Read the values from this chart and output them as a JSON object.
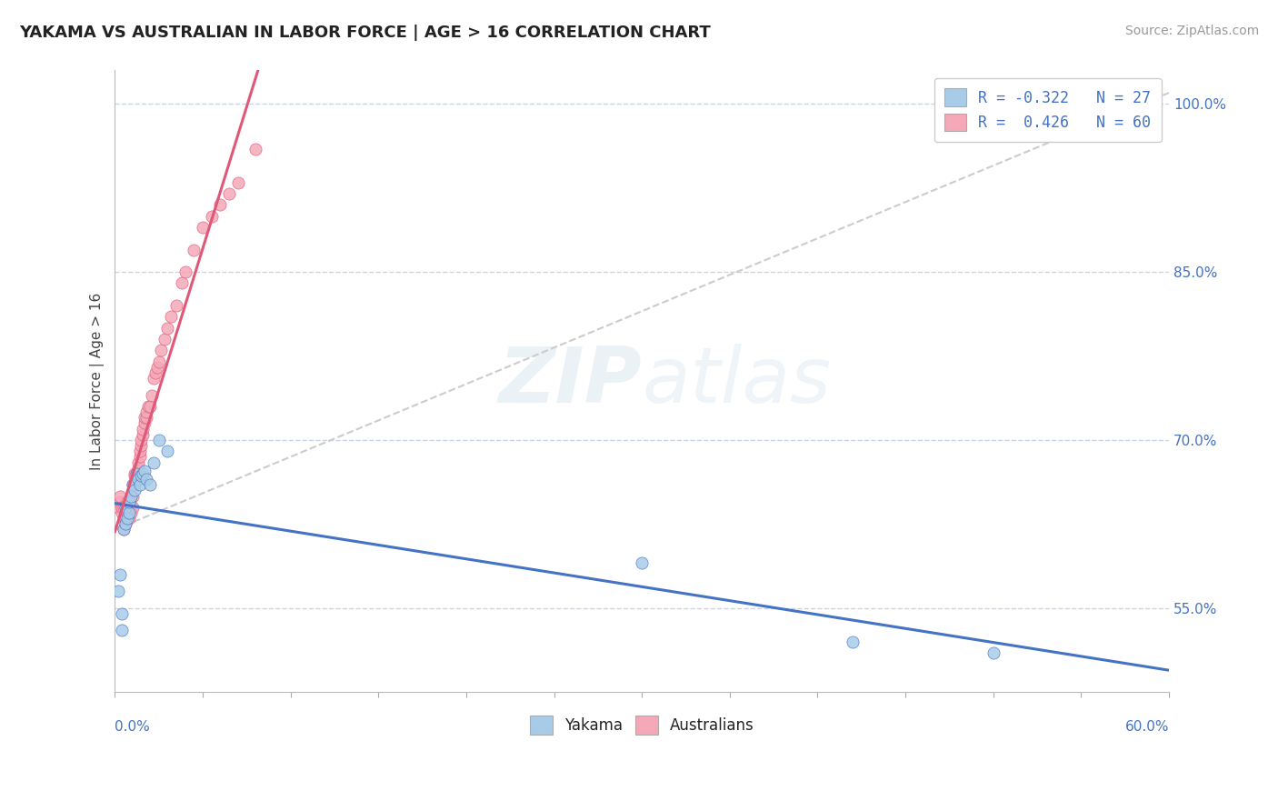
{
  "title": "YAKAMA VS AUSTRALIAN IN LABOR FORCE | AGE > 16 CORRELATION CHART",
  "source": "Source: ZipAtlas.com",
  "ylabel": "In Labor Force | Age > 16",
  "xlim": [
    0.0,
    0.6
  ],
  "ylim": [
    0.475,
    1.03
  ],
  "yticks": [
    0.55,
    0.7,
    0.85,
    1.0
  ],
  "watermark": "ZIPatlas",
  "yakama_color": "#a8cce8",
  "australian_color": "#f4a8b8",
  "trend_yakama_color": "#4472c4",
  "trend_australian_color": "#e05878",
  "background_color": "#ffffff",
  "grid_color": "#c8d4e8",
  "yakama_x": [
    0.002,
    0.003,
    0.004,
    0.004,
    0.005,
    0.006,
    0.006,
    0.007,
    0.008,
    0.008,
    0.009,
    0.01,
    0.011,
    0.012,
    0.013,
    0.014,
    0.015,
    0.016,
    0.017,
    0.018,
    0.02,
    0.022,
    0.025,
    0.03,
    0.3,
    0.42,
    0.5
  ],
  "yakama_y": [
    0.565,
    0.58,
    0.53,
    0.545,
    0.62,
    0.625,
    0.64,
    0.63,
    0.635,
    0.645,
    0.65,
    0.66,
    0.655,
    0.67,
    0.665,
    0.66,
    0.668,
    0.67,
    0.672,
    0.665,
    0.66,
    0.68,
    0.7,
    0.69,
    0.59,
    0.52,
    0.51
  ],
  "australian_x": [
    0.002,
    0.003,
    0.003,
    0.004,
    0.004,
    0.005,
    0.005,
    0.005,
    0.006,
    0.006,
    0.006,
    0.007,
    0.007,
    0.007,
    0.008,
    0.008,
    0.008,
    0.009,
    0.009,
    0.01,
    0.01,
    0.01,
    0.011,
    0.011,
    0.011,
    0.012,
    0.012,
    0.013,
    0.013,
    0.014,
    0.014,
    0.015,
    0.015,
    0.016,
    0.016,
    0.017,
    0.017,
    0.018,
    0.018,
    0.019,
    0.02,
    0.021,
    0.022,
    0.023,
    0.024,
    0.025,
    0.026,
    0.028,
    0.03,
    0.032,
    0.035,
    0.038,
    0.04,
    0.045,
    0.05,
    0.055,
    0.06,
    0.065,
    0.07,
    0.08
  ],
  "australian_y": [
    0.64,
    0.645,
    0.65,
    0.635,
    0.64,
    0.62,
    0.63,
    0.64,
    0.625,
    0.63,
    0.64,
    0.635,
    0.645,
    0.64,
    0.63,
    0.638,
    0.645,
    0.635,
    0.64,
    0.64,
    0.65,
    0.66,
    0.66,
    0.668,
    0.67,
    0.665,
    0.67,
    0.675,
    0.68,
    0.685,
    0.69,
    0.695,
    0.7,
    0.705,
    0.71,
    0.715,
    0.72,
    0.72,
    0.725,
    0.73,
    0.73,
    0.74,
    0.755,
    0.76,
    0.765,
    0.77,
    0.78,
    0.79,
    0.8,
    0.81,
    0.82,
    0.84,
    0.85,
    0.87,
    0.89,
    0.9,
    0.91,
    0.92,
    0.93,
    0.96
  ],
  "ref_line_x": [
    0.0,
    0.6
  ],
  "ref_line_y": [
    0.62,
    1.01
  ]
}
